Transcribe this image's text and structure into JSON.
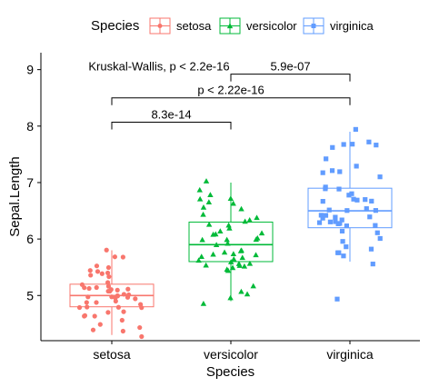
{
  "chart_data": {
    "type": "boxplot",
    "xlabel": "Species",
    "ylabel": "Sepal.Length",
    "ylim": [
      4.2,
      9.3
    ],
    "yticks": [
      5,
      6,
      7,
      8,
      9
    ],
    "legend": {
      "title": "Species",
      "position": "top"
    },
    "categories": [
      "setosa",
      "versicolor",
      "virginica"
    ],
    "colors": {
      "setosa": "#F8766D",
      "versicolor": "#00BA38",
      "virginica": "#619CFF"
    },
    "markers": {
      "setosa": "circle",
      "versicolor": "triangle",
      "virginica": "square"
    },
    "boxes": [
      {
        "name": "setosa",
        "min": 4.3,
        "q1": 4.8,
        "median": 5.0,
        "q3": 5.2,
        "max": 5.8
      },
      {
        "name": "versicolor",
        "min": 4.9,
        "q1": 5.6,
        "median": 5.9,
        "q3": 6.3,
        "max": 7.0
      },
      {
        "name": "virginica",
        "min": 5.6,
        "q1": 6.2,
        "median": 6.5,
        "q3": 6.9,
        "max": 7.9,
        "outliers": [
          4.9
        ]
      }
    ],
    "points": {
      "setosa": [
        5.1,
        4.9,
        4.7,
        4.6,
        5.0,
        5.4,
        4.6,
        5.0,
        4.4,
        4.9,
        5.4,
        4.8,
        4.8,
        4.3,
        5.8,
        5.7,
        5.4,
        5.1,
        5.7,
        5.1,
        5.4,
        5.1,
        4.6,
        5.1,
        4.8,
        5.0,
        5.0,
        5.2,
        5.2,
        4.7,
        4.8,
        5.4,
        5.2,
        5.5,
        4.9,
        5.0,
        5.5,
        4.9,
        4.4,
        5.1,
        5.0,
        4.5,
        4.4,
        5.0,
        5.1,
        4.8,
        5.1,
        4.6,
        5.3,
        5.0
      ],
      "versicolor": [
        7.0,
        6.4,
        6.9,
        5.5,
        6.5,
        5.7,
        6.3,
        4.9,
        6.6,
        5.2,
        5.0,
        5.9,
        6.0,
        6.1,
        5.6,
        6.7,
        5.6,
        5.8,
        6.2,
        5.6,
        5.9,
        6.1,
        6.3,
        6.1,
        6.4,
        6.6,
        6.8,
        6.7,
        6.0,
        5.7,
        5.5,
        5.5,
        5.8,
        6.0,
        5.4,
        6.0,
        6.7,
        6.3,
        5.6,
        5.5,
        5.5,
        6.1,
        5.8,
        5.0,
        5.6,
        5.7,
        5.7,
        6.2,
        5.1,
        5.7
      ],
      "virginica": [
        6.3,
        5.8,
        7.1,
        6.3,
        6.5,
        7.6,
        4.9,
        7.3,
        6.7,
        7.2,
        6.5,
        6.4,
        6.8,
        5.7,
        5.8,
        6.4,
        6.5,
        7.7,
        7.7,
        6.0,
        6.9,
        5.6,
        7.7,
        6.3,
        6.7,
        7.2,
        6.2,
        6.1,
        6.4,
        7.2,
        7.4,
        7.9,
        6.4,
        6.3,
        6.1,
        7.7,
        6.3,
        6.4,
        6.0,
        6.9,
        6.7,
        6.9,
        5.8,
        6.8,
        6.7,
        6.7,
        6.3,
        6.5,
        6.2,
        5.9
      ]
    },
    "annotations": [
      {
        "text": "Kruskal-Wallis, p < 2.2e-16",
        "y": 9.05
      },
      {
        "text": "5.9e-07",
        "from": "versicolor",
        "to": "virginica",
        "y": 8.92
      },
      {
        "text": "p < 2.22e-16",
        "from": "setosa",
        "to": "virginica",
        "y": 8.5
      },
      {
        "text": "8.3e-14",
        "from": "setosa",
        "to": "versicolor",
        "y": 8.07
      }
    ]
  }
}
